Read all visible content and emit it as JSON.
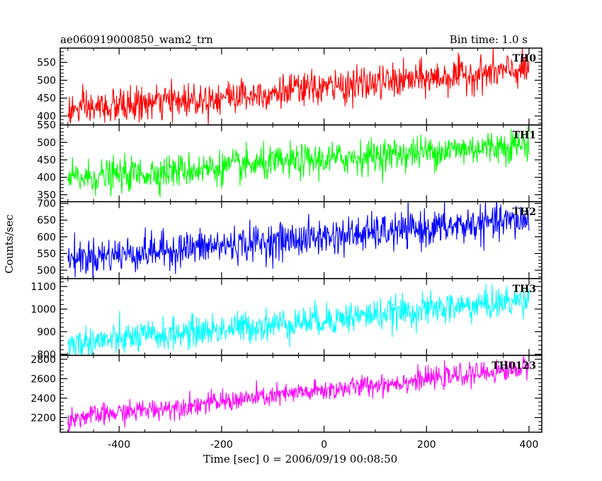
{
  "header": {
    "title": "ae060919000850_wam2_trn",
    "bin_time": "Bin time: 1.0 s"
  },
  "chart_data": {
    "type": "line",
    "title": "ae060919000850_wam2_trn",
    "subtitle": "Bin time: 1.0 s",
    "xlabel": "Time [sec] 0 = 2006/09/19 00:08:50",
    "ylabel": "Counts/sec",
    "xlim": [
      -515,
      425
    ],
    "x_ticks": [
      -400,
      -200,
      0,
      200,
      400
    ],
    "x_start": -500,
    "x_end": 400,
    "bin_time": 1.0,
    "panels": [
      {
        "name": "TH0",
        "color": "#ff0000",
        "ylim": [
          375,
          590
        ],
        "y_ticks": [
          400,
          450,
          500,
          550
        ],
        "trend_start": 415,
        "trend_end": 530,
        "noise_sd": 24
      },
      {
        "name": "TH1",
        "color": "#00ff00",
        "ylim": [
          330,
          550
        ],
        "y_ticks": [
          350,
          400,
          450,
          500,
          550
        ],
        "trend_start": 395,
        "trend_end": 495,
        "noise_sd": 24
      },
      {
        "name": "TH2",
        "color": "#0000ff",
        "ylim": [
          475,
          705
        ],
        "y_ticks": [
          500,
          550,
          600,
          650,
          700
        ],
        "trend_start": 535,
        "trend_end": 650,
        "noise_sd": 27
      },
      {
        "name": "TH3",
        "color": "#00ffff",
        "ylim": [
          795,
          1135
        ],
        "y_ticks": [
          800,
          900,
          1000,
          1100
        ],
        "trend_start": 845,
        "trend_end": 1040,
        "noise_sd": 35
      },
      {
        "name": "TH0123",
        "color": "#ff00ff",
        "ylim": [
          2050,
          2840
        ],
        "y_ticks": [
          2200,
          2400,
          2600,
          2800
        ],
        "trend_start": 2190,
        "trend_end": 2710,
        "noise_sd": 55
      }
    ]
  }
}
